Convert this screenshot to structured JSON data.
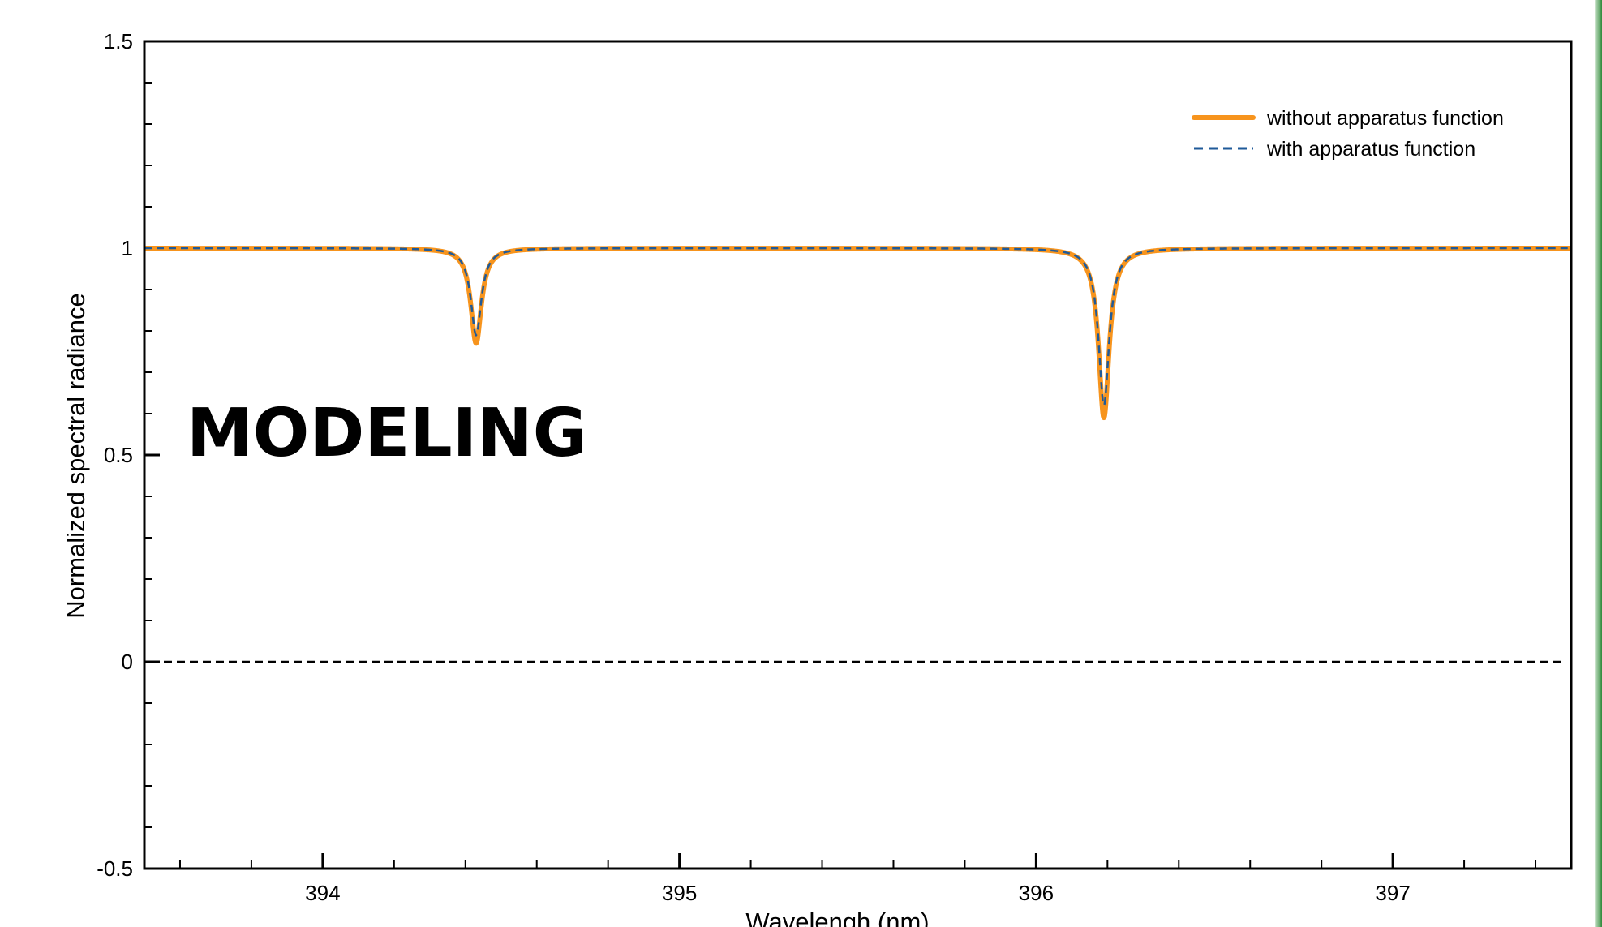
{
  "overlay": {
    "label": "MODELING"
  },
  "chart_data": {
    "type": "line",
    "title": "",
    "xlabel": "Wavelengh (nm)",
    "ylabel": "Normalized spectral radiance",
    "xlim": [
      393.5,
      397.5
    ],
    "ylim": [
      -0.5,
      1.5
    ],
    "x_ticks": [
      394,
      395,
      396,
      397
    ],
    "x_tick_labels": [
      "394",
      "395",
      "396",
      "397"
    ],
    "y_ticks": [
      -0.5,
      0,
      0.5,
      1,
      1.5
    ],
    "y_tick_labels": [
      "-0.5",
      "0",
      "0.5",
      "1",
      "1.5"
    ],
    "grid": false,
    "legend_position": "top-right",
    "reference_line": {
      "y": 0,
      "style": "dashed",
      "color": "#000000"
    },
    "series": [
      {
        "name": "without apparatus function",
        "color": "#f7941d",
        "style": "solid",
        "baseline": 1.0,
        "lines": [
          {
            "center": 394.43,
            "min_value": 0.77
          },
          {
            "center": 396.19,
            "min_value": 0.59
          }
        ],
        "x": [
          393.5,
          394.0,
          394.3,
          394.4,
          394.43,
          394.46,
          394.55,
          395.0,
          396.0,
          396.1,
          396.16,
          396.19,
          396.22,
          396.3,
          397.0,
          397.5
        ],
        "values": [
          1.0,
          1.0,
          0.99,
          0.9,
          0.77,
          0.9,
          0.99,
          1.0,
          0.995,
          0.95,
          0.8,
          0.59,
          0.8,
          0.98,
          1.0,
          1.0
        ]
      },
      {
        "name": "with apparatus function",
        "color": "#1f5a99",
        "style": "dashed",
        "baseline": 1.0,
        "lines": [
          {
            "center": 394.43,
            "min_value": 0.79
          },
          {
            "center": 396.19,
            "min_value": 0.62
          }
        ],
        "x": [
          393.5,
          394.0,
          394.3,
          394.4,
          394.43,
          394.46,
          394.55,
          395.0,
          396.0,
          396.1,
          396.16,
          396.19,
          396.22,
          396.3,
          397.0,
          397.5
        ],
        "values": [
          1.0,
          1.0,
          0.99,
          0.9,
          0.79,
          0.9,
          0.99,
          1.0,
          0.995,
          0.95,
          0.81,
          0.62,
          0.81,
          0.98,
          1.0,
          1.0
        ]
      }
    ]
  }
}
